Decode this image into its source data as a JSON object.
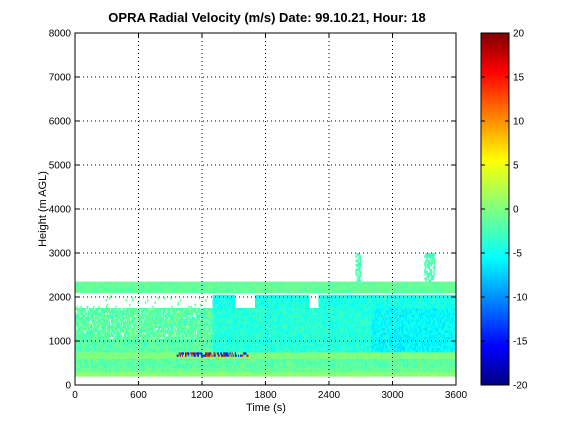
{
  "chart_data": {
    "type": "heatmap",
    "title": "OPRA Radial Velocity (m/s)  Date: 99.10.21, Hour: 18",
    "xlabel": "Time (s)",
    "ylabel": "Height (m AGL)",
    "xlim": [
      0,
      3600
    ],
    "ylim": [
      0,
      8000
    ],
    "xticks": [
      0,
      600,
      1200,
      1800,
      2400,
      3000,
      3600
    ],
    "yticks": [
      0,
      1000,
      2000,
      3000,
      4000,
      5000,
      6000,
      7000,
      8000
    ],
    "xtick_labels": [
      "0",
      "600",
      "1200",
      "1800",
      "2400",
      "3000",
      "3600"
    ],
    "ytick_labels": [
      "0",
      "1000",
      "2000",
      "3000",
      "4000",
      "5000",
      "6000",
      "7000",
      "8000"
    ],
    "grid": true,
    "colorbar": {
      "colormap": "jet",
      "range": [
        -20,
        20
      ],
      "ticks": [
        -20,
        -15,
        -10,
        -5,
        0,
        5,
        10,
        15,
        20
      ],
      "tick_labels": [
        "-20",
        "-15",
        "-10",
        "-5",
        "0",
        "5",
        "10",
        "15",
        "20"
      ]
    },
    "data_regions": [
      {
        "x": [
          0,
          3600
        ],
        "y": [
          250,
          400
        ],
        "value": -1
      },
      {
        "x": [
          0,
          3600
        ],
        "y": [
          400,
          560
        ],
        "value": -2
      },
      {
        "x": [
          0,
          3600
        ],
        "y": [
          560,
          720
        ],
        "value": 0
      },
      {
        "x": [
          0,
          3600
        ],
        "y": [
          720,
          1700
        ],
        "value": -1.5
      },
      {
        "x": [
          1300,
          3600
        ],
        "y": [
          720,
          2000
        ],
        "value": -4
      },
      {
        "x": [
          2800,
          3600
        ],
        "y": [
          1000,
          2200
        ],
        "value": -5
      },
      {
        "x": [
          0,
          3600
        ],
        "y": [
          2100,
          2350
        ],
        "value": -1
      },
      {
        "x": [
          2650,
          2700
        ],
        "y": [
          2350,
          3000
        ],
        "value": -2
      },
      {
        "x": [
          3300,
          3400
        ],
        "y": [
          2350,
          3000
        ],
        "value": -2
      },
      {
        "x": [
          950,
          1600
        ],
        "y": [
          620,
          720
        ],
        "value": "mixed -18..15"
      }
    ]
  }
}
